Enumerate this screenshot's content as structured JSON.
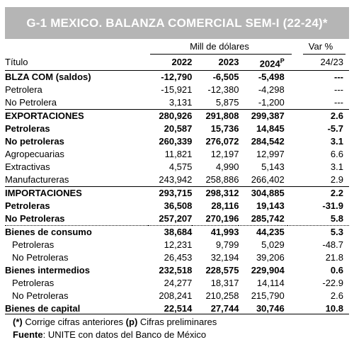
{
  "title": "G-1 MEXICO. BALANZA COMERCIAL SEM-I (22-24)*",
  "group_header": "Mill de dólares",
  "var_header": "Var %",
  "columns": {
    "label": "Título",
    "y2022": "2022",
    "y2023": "2023",
    "y2024": "2024",
    "y2024_mark": "P",
    "var": "24/23"
  },
  "rows": [
    {
      "label": "BLZA COM (saldos)",
      "v2022": "-12,790",
      "v2023": "-6,505",
      "v2024": "-5,498",
      "var": "---"
    },
    {
      "label": "Petrolera",
      "v2022": "-15,921",
      "v2023": "-12,380",
      "v2024": "-4,298",
      "var": "---"
    },
    {
      "label": "No Petrolera",
      "v2022": "3,131",
      "v2023": "5,875",
      "v2024": "-1,200",
      "var": "---"
    },
    {
      "label": "EXPORTACIONES",
      "v2022": "280,926",
      "v2023": "291,808",
      "v2024": "299,387",
      "var": "2.6"
    },
    {
      "label": "Petroleras",
      "v2022": "20,587",
      "v2023": "15,736",
      "v2024": "14,845",
      "var": "-5.7"
    },
    {
      "label": "No petroleras",
      "v2022": "260,339",
      "v2023": "276,072",
      "v2024": "284,542",
      "var": "3.1"
    },
    {
      "label": "Agropecuarias",
      "v2022": "11,821",
      "v2023": "12,197",
      "v2024": "12,997",
      "var": "6.6"
    },
    {
      "label": "Extractivas",
      "v2022": "4,575",
      "v2023": "4,990",
      "v2024": "5,143",
      "var": "3.1"
    },
    {
      "label": "Manufactureras",
      "v2022": "243,942",
      "v2023": "258,886",
      "v2024": "266,402",
      "var": "2.9"
    },
    {
      "label": "IMPORTACIONES",
      "v2022": "293,715",
      "v2023": "298,312",
      "v2024": "304,885",
      "var": "2.2"
    },
    {
      "label": "Petroleras",
      "v2022": "36,508",
      "v2023": "28,116",
      "v2024": "19,143",
      "var": "-31.9"
    },
    {
      "label": "No Petroleras",
      "v2022": "257,207",
      "v2023": "270,196",
      "v2024": "285,742",
      "var": "5.8"
    },
    {
      "label": "Bienes de consumo",
      "v2022": "38,684",
      "v2023": "41,993",
      "v2024": "44,235",
      "var": "5.3"
    },
    {
      "label": "Petroleras",
      "v2022": "12,231",
      "v2023": "9,799",
      "v2024": "5,029",
      "var": "-48.7"
    },
    {
      "label": "No Petroleras",
      "v2022": "26,453",
      "v2023": "32,194",
      "v2024": "39,206",
      "var": "21.8"
    },
    {
      "label": "Bienes intermedios",
      "v2022": "232,518",
      "v2023": "228,575",
      "v2024": "229,904",
      "var": "0.6"
    },
    {
      "label": "Petroleras",
      "v2022": "24,277",
      "v2023": "18,317",
      "v2024": "14,114",
      "var": "-22.9"
    },
    {
      "label": "No Petroleras",
      "v2022": "208,241",
      "v2023": "210,258",
      "v2024": "215,790",
      "var": "2.6"
    },
    {
      "label": "Bienes de capital",
      "v2022": "22,514",
      "v2023": "27,744",
      "v2024": "30,746",
      "var": "10.8"
    }
  ],
  "notes": {
    "star": "(*)",
    "star_text": " Corrige cifras anteriores ",
    "p": "(p)",
    "p_text": " Cifras preliminares",
    "source_label": "Fuente",
    "source_text": ": UNITE con datos del Banco de México"
  }
}
